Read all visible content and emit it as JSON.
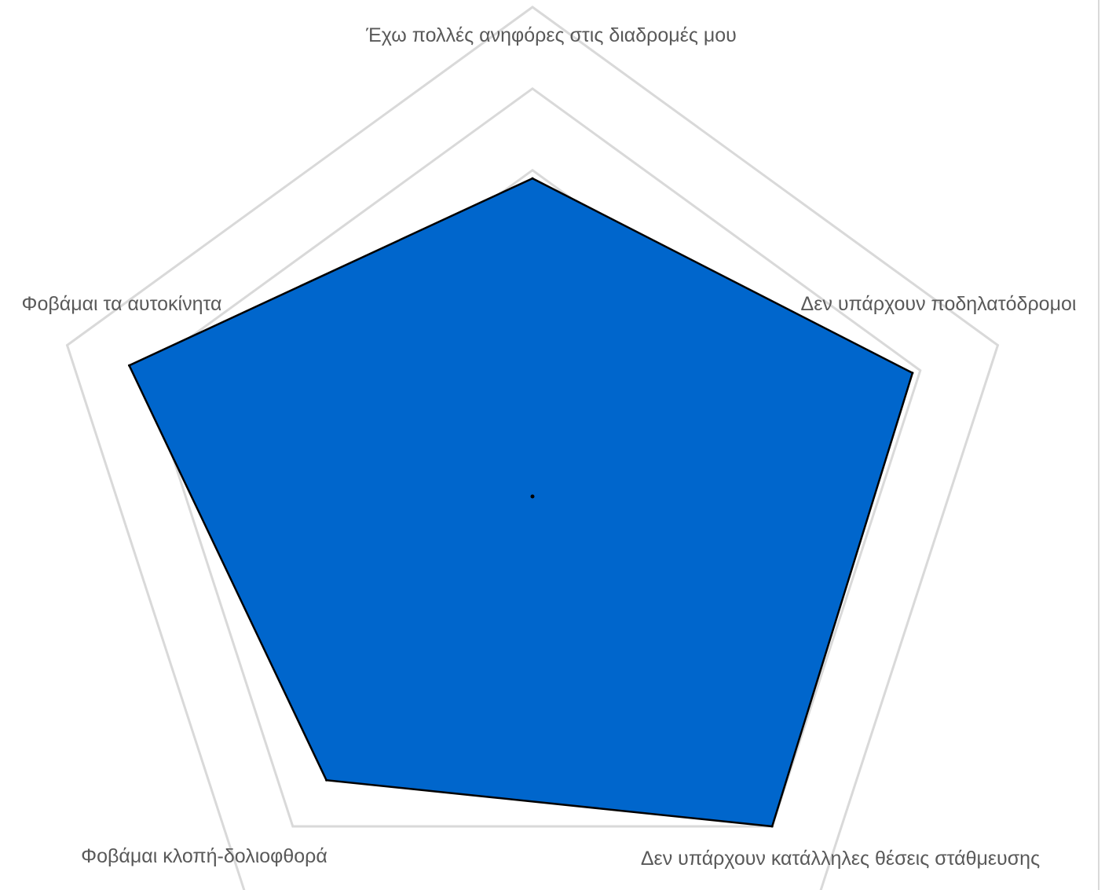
{
  "chart_data": {
    "type": "radar",
    "title": "",
    "categories": [
      "Έχω πολλές ανηφόρες στις διαδρομές μου",
      "Δεν υπάρχουν ποδηλατόδρομοι",
      "Δεν υπάρχουν κατάλληλες θέσεις στάθμευσης",
      "Φοβάμαι κλοπή-δολιοφθορά",
      "Φοβάμαι τα αυτοκίνητα"
    ],
    "series": [
      {
        "values": [
          3.9,
          4.9,
          5.0,
          4.3,
          5.2
        ],
        "color": "#0066CC",
        "edge_color": "#000000"
      }
    ],
    "r_range": [
      0,
      6
    ],
    "gridline_levels": [
      4,
      5,
      6
    ],
    "grid": true,
    "gridline_color": "#D9D9D9",
    "legend": "none"
  }
}
